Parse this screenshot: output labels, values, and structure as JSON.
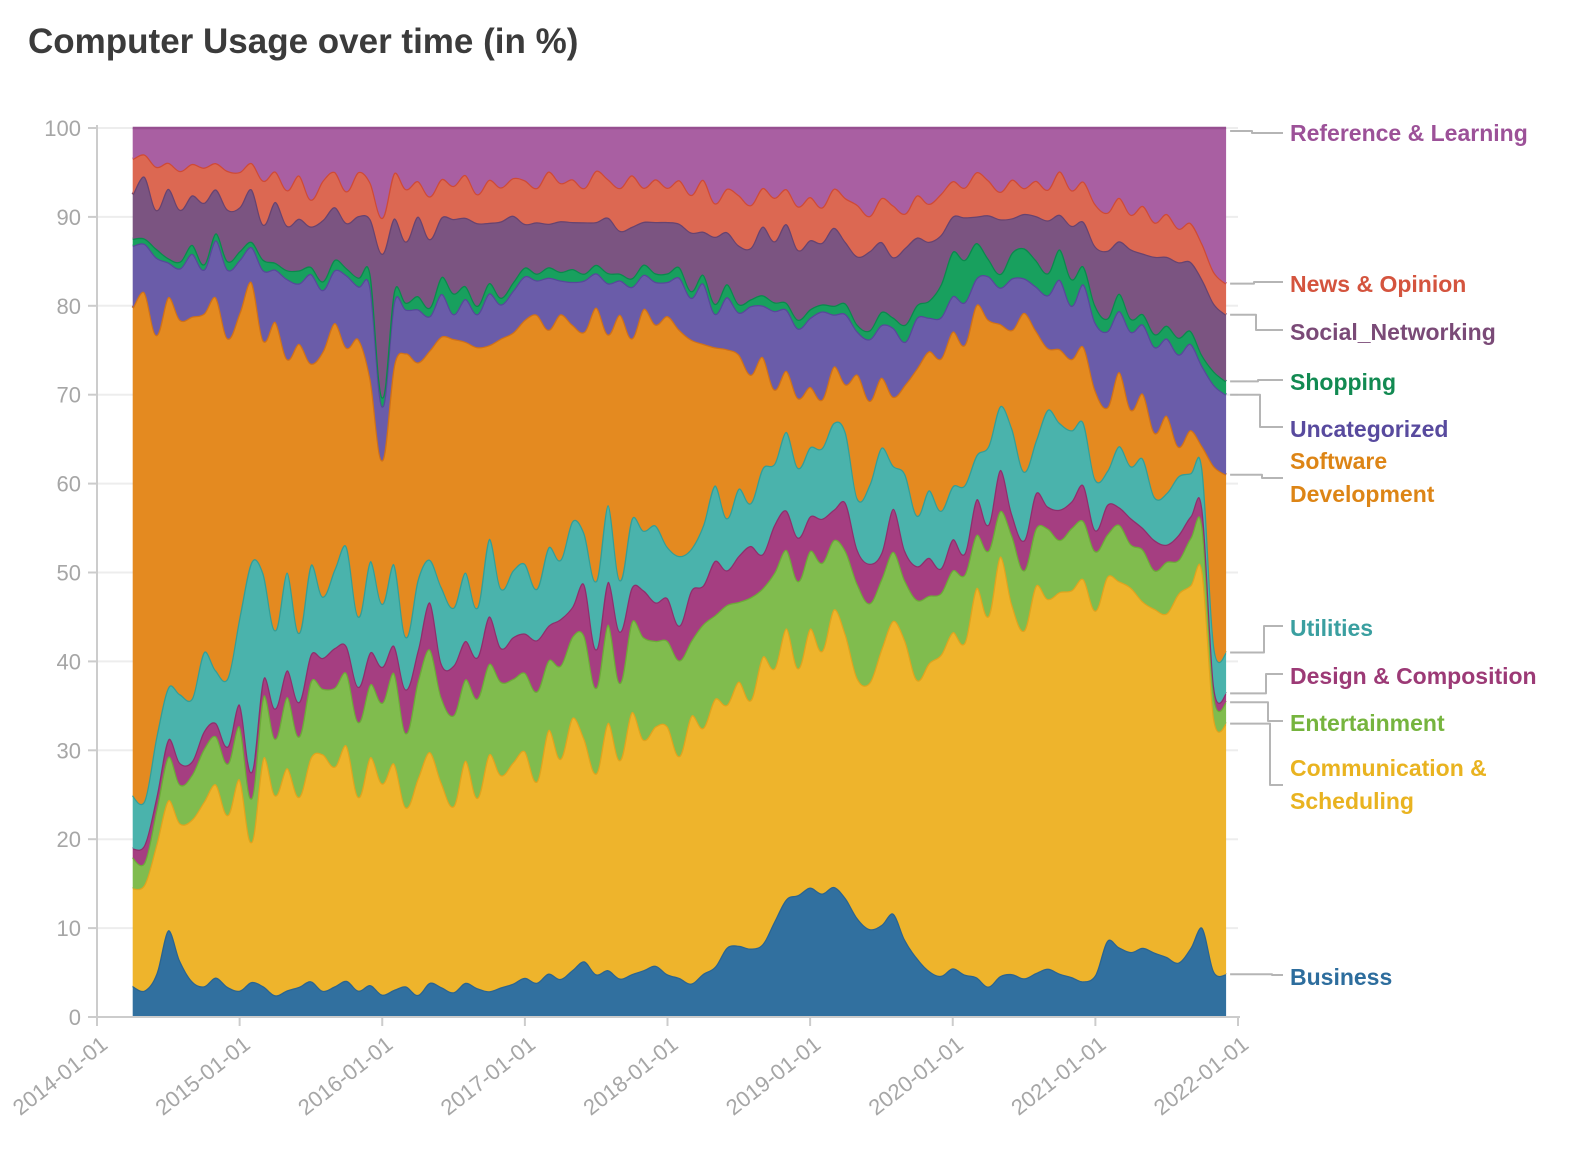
{
  "page": {
    "title": "Computer Usage over time (in %)"
  },
  "colors": {
    "background": "#ffffff",
    "title_text": "#3b3b3b",
    "axis_line": "#cccccc",
    "tick_label": "#a6a6a6",
    "gridline": "#ededed",
    "leader_line": "#b5b5b5"
  },
  "chart_data": {
    "type": "area",
    "stacked": true,
    "values_are_percent": true,
    "normalize_to_100": true,
    "title": "Computer Usage over time (in %)",
    "xlabel": "",
    "ylabel": "",
    "xlim": [
      "2014-01-01",
      "2022-01-01"
    ],
    "ylim": [
      0,
      100
    ],
    "grid": true,
    "legend_position": "right-labels-with-leader-lines",
    "x_tick_labels": [
      "2014-01-01",
      "2015-01-01",
      "2016-01-01",
      "2017-01-01",
      "2018-01-01",
      "2019-01-01",
      "2020-01-01",
      "2021-01-01",
      "2022-01-01"
    ],
    "y_tick_labels": [
      0,
      10,
      20,
      30,
      40,
      50,
      60,
      70,
      80,
      90,
      100
    ],
    "x_start_month": "2014-04",
    "x_step_months": 1,
    "series": [
      {
        "name": "Business",
        "color": "#31709f",
        "stroke": "#2a6490",
        "label_color": "#2d6d9d",
        "values": [
          3.5,
          3,
          5,
          10,
          6.5,
          4,
          3.5,
          4.5,
          3.5,
          3,
          4,
          3.5,
          2.5,
          3,
          3.5,
          4,
          3,
          3.5,
          4,
          3,
          3.5,
          2.5,
          3,
          3.5,
          2.5,
          4,
          3.5,
          3,
          4,
          3.5,
          3,
          3.5,
          4,
          4.5,
          4,
          5,
          4.5,
          5.5,
          6.5,
          5,
          5.5,
          4.5,
          5,
          5.5,
          6,
          5,
          4.5,
          4,
          5,
          6,
          8,
          8.5,
          8,
          8.5,
          11,
          13.5,
          14,
          15,
          14,
          15,
          13.5,
          11.5,
          10,
          10.5,
          12,
          9,
          7,
          5.5,
          5,
          5.5,
          5,
          4.5,
          3.5,
          4.5,
          5,
          4.5,
          5,
          5.5,
          5,
          4.5,
          4,
          5,
          9,
          8,
          7.5,
          8,
          7.5,
          7,
          6.5,
          8,
          10,
          5,
          4.8
        ]
      },
      {
        "name": "Communication & Scheduling",
        "color": "#eeb42c",
        "stroke": "#e0a41e",
        "label_color": "#e9b320",
        "values": [
          11,
          12,
          15,
          15,
          16,
          18,
          21,
          22,
          20,
          24,
          16,
          26,
          23,
          25,
          22,
          25,
          27,
          25,
          26,
          22,
          25,
          23.5,
          25,
          20.5,
          24.5,
          27,
          24,
          22.5,
          26,
          23,
          27.5,
          25,
          26.5,
          26,
          23.5,
          28,
          26,
          29.5,
          26,
          23.5,
          29,
          25.5,
          30.5,
          27,
          28,
          29,
          25.5,
          32,
          28.5,
          32,
          28,
          31.5,
          29,
          33.5,
          29,
          31,
          26,
          30,
          27.5,
          32,
          30,
          28,
          28,
          31.5,
          34,
          35,
          33,
          36.5,
          39,
          38,
          39,
          44,
          42.5,
          46,
          43,
          40.5,
          44,
          42,
          44,
          43.5,
          45,
          43,
          43,
          42,
          42,
          40,
          40,
          40,
          44,
          42,
          40,
          28,
          28.2
        ]
      },
      {
        "name": "Entertainment",
        "color": "#80bc4e",
        "stroke": "#6cab38",
        "label_color": "#76b43e",
        "values": [
          3.5,
          2.5,
          4,
          5,
          4.5,
          5,
          6,
          5.5,
          6,
          6,
          5,
          7,
          6.5,
          8,
          7,
          8.5,
          7.5,
          9,
          8,
          8.5,
          8,
          9,
          10,
          8.5,
          11,
          12,
          10,
          11,
          9.5,
          12,
          10.5,
          11,
          10,
          9,
          10.5,
          8,
          11,
          9.5,
          12,
          10,
          11.5,
          9,
          10.5,
          12,
          10,
          10,
          11,
          9,
          12,
          10,
          11.5,
          9.5,
          12,
          8,
          11,
          9,
          10,
          9,
          10,
          8,
          9.5,
          11,
          9,
          8,
          8,
          7,
          9.5,
          8,
          7.5,
          7,
          8,
          6,
          7.5,
          5,
          8,
          7,
          6.5,
          8,
          6,
          7,
          6.5,
          7,
          5,
          6.5,
          5,
          6,
          4.5,
          6,
          4,
          5.5,
          5,
          2.5,
          2.4
        ]
      },
      {
        "name": "Design & Composition",
        "color": "#a53e81",
        "stroke": "#8f2f6d",
        "label_color": "#9c3a76",
        "values": [
          1,
          2,
          1.5,
          2,
          2.5,
          1.5,
          2,
          1.5,
          2,
          2.5,
          3,
          2,
          3.5,
          3,
          4,
          3,
          3.5,
          4.5,
          3,
          4,
          3.5,
          4,
          3,
          5,
          3.5,
          5.5,
          4,
          6,
          4.5,
          5,
          5.5,
          4,
          5,
          4.5,
          6,
          4,
          5.5,
          3.5,
          6,
          4.5,
          5,
          6,
          4,
          5.5,
          4.5,
          5,
          4,
          6,
          4.5,
          6.5,
          4,
          5.5,
          6,
          4,
          5.5,
          4.5,
          5,
          4,
          5,
          3.5,
          5.5,
          4,
          4.5,
          3,
          5,
          3.5,
          4,
          4.5,
          3,
          3.5,
          2.5,
          4,
          3,
          4.5,
          2.5,
          3.5,
          4,
          2.5,
          3.5,
          3,
          4,
          2.5,
          3.5,
          2,
          3,
          2.5,
          3.5,
          2,
          3,
          2.5,
          2,
          1,
          1
        ]
      },
      {
        "name": "Utilities",
        "color": "#4ab3ac",
        "stroke": "#339e97",
        "label_color": "#3a9fa0",
        "values": [
          6,
          5,
          7,
          6,
          8,
          7,
          9,
          6,
          8,
          10,
          24,
          12,
          9,
          11,
          8,
          10,
          7,
          9,
          11,
          8,
          10,
          7,
          9,
          6,
          8,
          5,
          9,
          7,
          8,
          6,
          9,
          7,
          8,
          8,
          6,
          9,
          7,
          10,
          6,
          8,
          9,
          6,
          8,
          7,
          9,
          6,
          8,
          5,
          7,
          9,
          6,
          8,
          5,
          10,
          7,
          9,
          8,
          8,
          8,
          10,
          8,
          6,
          9,
          12,
          5,
          9,
          6,
          8,
          7,
          6,
          8,
          5,
          9,
          7,
          10,
          8,
          6,
          11,
          10,
          8,
          7,
          6,
          4,
          7,
          6,
          8,
          5,
          6,
          7,
          5,
          4.5,
          4.5,
          4.6
        ]
      },
      {
        "name": "Software Development",
        "color": "#e48a20",
        "stroke": "#d07118",
        "label_color": "#dd8516",
        "values": [
          55,
          57.5,
          46.5,
          45,
          43.5,
          42.5,
          38.5,
          42.5,
          39.5,
          34.5,
          32,
          26.5,
          35.5,
          24,
          33.5,
          22.5,
          28,
          28,
          22,
          31.5,
          20,
          16,
          22,
          32.5,
          24.5,
          24.5,
          29.5,
          32.5,
          27,
          31.5,
          22.5,
          29.5,
          28.5,
          28,
          32,
          25,
          29,
          23,
          23.5,
          32,
          20,
          31,
          21,
          26,
          23.5,
          27,
          26,
          25,
          21,
          16.5,
          19.5,
          16,
          15,
          13,
          8.5,
          7,
          8,
          7,
          5.5,
          6.5,
          5.5,
          14.5,
          9.5,
          8,
          8,
          10.5,
          17.5,
          16.5,
          18.5,
          17.5,
          16.5,
          17,
          14.5,
          9,
          11.5,
          18.5,
          12.5,
          7,
          8.5,
          8,
          8.5,
          10.5,
          7.5,
          8.5,
          6.5,
          7.5,
          7.5,
          9,
          3.5,
          5,
          2.5,
          20,
          20
        ]
      },
      {
        "name": "Uncategorized",
        "color": "#6a5ca9",
        "stroke": "#57489a",
        "label_color": "#584a9e",
        "values": [
          7,
          5.5,
          9,
          4,
          6,
          7,
          5,
          6.5,
          8,
          6,
          4,
          8,
          6,
          9,
          7,
          10,
          7,
          6,
          8,
          6,
          10,
          6,
          7,
          5,
          6,
          4,
          5,
          3,
          5,
          4,
          6,
          4,
          5,
          5,
          4,
          6,
          4,
          5,
          6,
          4,
          6,
          4,
          6,
          4,
          5,
          4,
          6,
          5,
          7,
          4,
          6,
          5,
          8,
          6,
          9,
          7,
          8,
          8,
          10,
          6,
          8,
          5,
          7,
          6,
          8,
          5,
          6,
          4,
          5,
          4,
          5,
          3,
          5,
          4,
          6,
          4,
          5,
          6,
          8,
          6,
          7,
          8,
          9,
          7,
          9,
          8,
          10,
          9,
          11,
          10,
          9,
          9,
          9
        ]
      },
      {
        "name": "Shopping",
        "color": "#18a05e",
        "stroke": "#0a8a4c",
        "label_color": "#128a52",
        "values": [
          0.8,
          0.6,
          1,
          0.5,
          0.8,
          1,
          0.6,
          0.8,
          1,
          1,
          0.6,
          1.2,
          0.8,
          1,
          1.5,
          0.8,
          1,
          1.2,
          0.8,
          1,
          1.5,
          1,
          1.2,
          0.8,
          1.5,
          1,
          2,
          2.5,
          1.5,
          1,
          1.2,
          0.8,
          1,
          1,
          0.8,
          1.2,
          1,
          1.5,
          0.8,
          1,
          1.2,
          0.8,
          1,
          1.2,
          1,
          1,
          1.2,
          0.8,
          1,
          1.2,
          1.5,
          1,
          0.8,
          1.2,
          1,
          0.8,
          1,
          1,
          0.8,
          1,
          1.2,
          0.8,
          1,
          1.5,
          1.2,
          2,
          1.5,
          2,
          4,
          5,
          5,
          4,
          2,
          1.5,
          3,
          3.5,
          3,
          2.5,
          3.5,
          3,
          2,
          2,
          1.5,
          2,
          1.5,
          1.2,
          1.5,
          1.5,
          2,
          1.5,
          1.2,
          1.5,
          1.5
        ]
      },
      {
        "name": "Social_Networking",
        "color": "#7b5481",
        "stroke": "#674370",
        "label_color": "#7a4a77",
        "values": [
          5,
          7,
          4.5,
          8,
          6,
          5.5,
          7,
          5,
          6,
          5,
          6,
          4,
          7,
          5,
          6,
          4.5,
          7,
          6,
          5,
          7,
          6,
          16,
          8,
          7,
          9,
          8,
          7,
          9,
          8,
          10,
          7,
          9,
          8,
          5,
          6,
          5,
          6,
          5.5,
          6,
          5,
          6.5,
          5,
          6,
          5,
          6,
          6,
          5,
          7,
          5,
          8,
          6,
          7,
          6,
          8,
          7,
          9,
          8,
          8,
          7,
          9,
          7,
          8,
          9,
          8,
          7,
          9,
          8,
          7,
          6,
          4,
          5,
          3,
          5,
          6,
          4,
          4,
          5,
          6,
          4,
          6,
          5,
          7,
          8,
          6,
          8,
          7,
          9,
          8,
          9,
          8,
          8.5,
          7.5,
          7.5
        ]
      },
      {
        "name": "News & Opinion",
        "color": "#dc6852",
        "stroke": "#cf4a36",
        "label_color": "#d4543e",
        "values": [
          4,
          2.5,
          5,
          3,
          4.5,
          3.5,
          4,
          3,
          4.5,
          4,
          3,
          5,
          3.5,
          4,
          5,
          3,
          4.5,
          4,
          3.5,
          5,
          4,
          4,
          5,
          6,
          4,
          5,
          4.5,
          4,
          5,
          3.5,
          5,
          4,
          4.5,
          5,
          4,
          6,
          4.5,
          5,
          4,
          6,
          4.5,
          5,
          6,
          4,
          5,
          4,
          5,
          4.5,
          6,
          4,
          5,
          6,
          5,
          4.5,
          5,
          4,
          5,
          5,
          4,
          4.5,
          5,
          6,
          4,
          5,
          6,
          4,
          5,
          4.5,
          5,
          4,
          3.5,
          5,
          4,
          3,
          4.5,
          3,
          4,
          3.5,
          5,
          4,
          4.5,
          5,
          4.5,
          5,
          4,
          5.5,
          4,
          5,
          4,
          4.5,
          4,
          3.5,
          3.5
        ]
      },
      {
        "name": "Reference & Learning",
        "color": "#a95fa2",
        "stroke": "#964f90",
        "label_color": "#9c5198",
        "values": [
          3.5,
          3,
          4.5,
          4,
          5,
          4,
          4.5,
          4,
          5,
          5,
          4,
          6,
          5,
          7,
          5.5,
          8,
          6,
          5,
          7,
          5,
          6,
          10,
          5,
          7,
          6,
          8,
          6,
          7,
          5.5,
          8,
          6,
          7,
          6,
          6,
          7,
          5,
          6.5,
          6,
          7,
          5,
          6,
          7,
          5.5,
          7,
          6,
          7,
          6,
          8,
          6,
          9,
          7,
          8,
          9,
          7,
          8,
          7,
          9,
          8,
          9,
          7,
          8,
          9,
          10,
          8,
          9,
          10,
          8,
          9,
          8,
          6,
          7,
          5,
          6,
          7,
          6,
          7,
          6,
          7,
          5,
          7,
          6,
          9,
          10,
          8,
          10,
          9,
          11,
          10,
          12,
          11,
          13,
          16,
          17.5
        ]
      }
    ]
  }
}
